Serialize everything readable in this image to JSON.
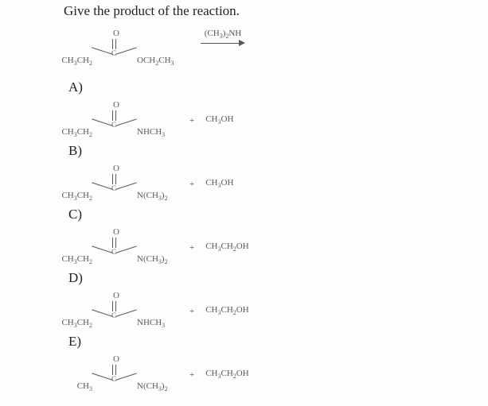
{
  "title": "Give the product of the reaction.",
  "reactant": {
    "left": "CH<sub>3</sub>CH<sub>2</sub>",
    "right": "OCH<sub>2</sub>CH<sub>3</sub>",
    "top": "O",
    "reagent": "(CH<sub>3</sub>)<sub>2</sub>NH"
  },
  "options": {
    "A": {
      "left": "CH<sub>3</sub>CH<sub>2</sub>",
      "right": "NHCH<sub>3</sub>",
      "top": "O",
      "by": "CH<sub>3</sub>OH"
    },
    "B": {
      "left": "CH<sub>3</sub>CH<sub>2</sub>",
      "right": "N(CH<sub>3</sub>)<sub>2</sub>",
      "top": "O",
      "by": "CH<sub>3</sub>OH"
    },
    "C": {
      "left": "CH<sub>3</sub>CH<sub>2</sub>",
      "right": "N(CH<sub>3</sub>)<sub>2</sub>",
      "top": "O",
      "by": "CH<sub>3</sub>CH<sub>2</sub>OH"
    },
    "D": {
      "left": "CH<sub>3</sub>CH<sub>2</sub>",
      "right": "NHCH<sub>3</sub>",
      "top": "O",
      "by": "CH<sub>3</sub>CH<sub>2</sub>OH"
    },
    "E": {
      "left": "CH<sub>3</sub>",
      "right": "N(CH<sub>3</sub>)<sub>2</sub>",
      "top": "O",
      "by": "CH<sub>3</sub>CH<sub>2</sub>OH"
    }
  },
  "order": [
    "A",
    "B",
    "C",
    "D",
    "E"
  ]
}
